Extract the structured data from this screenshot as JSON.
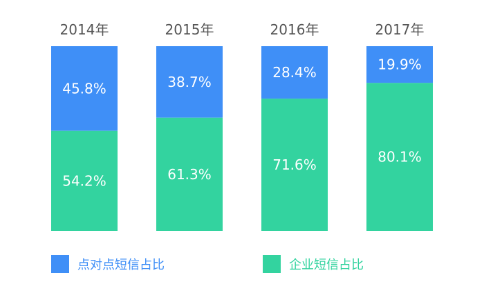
{
  "chart_data": {
    "type": "bar",
    "stacked": true,
    "normalized": true,
    "categories": [
      "2014年",
      "2015年",
      "2016年",
      "2017年"
    ],
    "series": [
      {
        "name": "点对点短信占比",
        "color": "#3f8ff7",
        "values": [
          45.8,
          38.7,
          28.4,
          19.9
        ],
        "labels": [
          "45.8%",
          "38.7%",
          "28.4%",
          "19.9%"
        ]
      },
      {
        "name": "企业短信占比",
        "color": "#33d39f",
        "values": [
          54.2,
          61.3,
          71.6,
          80.1
        ],
        "labels": [
          "54.2%",
          "61.3%",
          "71.6%",
          "80.1%"
        ]
      }
    ],
    "ylim": [
      0,
      100
    ],
    "grid": false,
    "legend_position": "bottom"
  }
}
